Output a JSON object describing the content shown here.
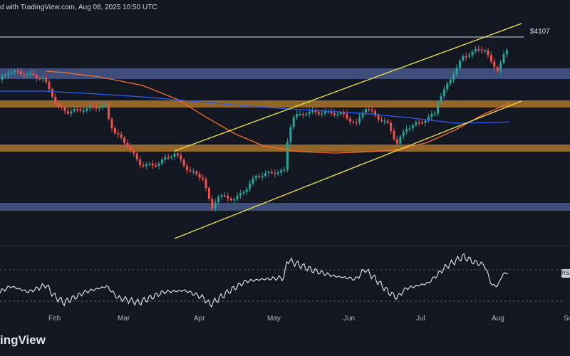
{
  "header": {
    "caption": "d with TradingView.com, Aug 08, 2025 10:50 UTC"
  },
  "footer": {
    "brand": "ingView"
  },
  "colors": {
    "bg": "#131722",
    "up": "#26a69a",
    "down": "#ef5350",
    "channel": "#f5e642",
    "ma_short": "#f6702f",
    "ma_long": "#2f5cf0",
    "zone_blue": "#46578a",
    "zone_orange": "#a9732a",
    "rsi_line": "#e7e9ef",
    "level_line": "#d1d4dc"
  },
  "chart_data": {
    "type": "candlestick",
    "x_axis": {
      "labels": [
        "Feb",
        "Mar",
        "Apr",
        "May",
        "Jun",
        "Jul",
        "Aug",
        "Se"
      ]
    },
    "horizontal_level": {
      "label": "$4107"
    },
    "zones": [
      {
        "type": "resistance",
        "color": "blue"
      },
      {
        "type": "support",
        "color": "orange"
      },
      {
        "type": "support",
        "color": "orange"
      },
      {
        "type": "support",
        "color": "blue"
      }
    ],
    "channel": "ascending",
    "moving_averages": [
      "short (orange)",
      "long (blue)"
    ],
    "ohlc": [],
    "rsi": {
      "tag": "RSI",
      "levels": [
        70,
        30
      ],
      "values": []
    }
  }
}
